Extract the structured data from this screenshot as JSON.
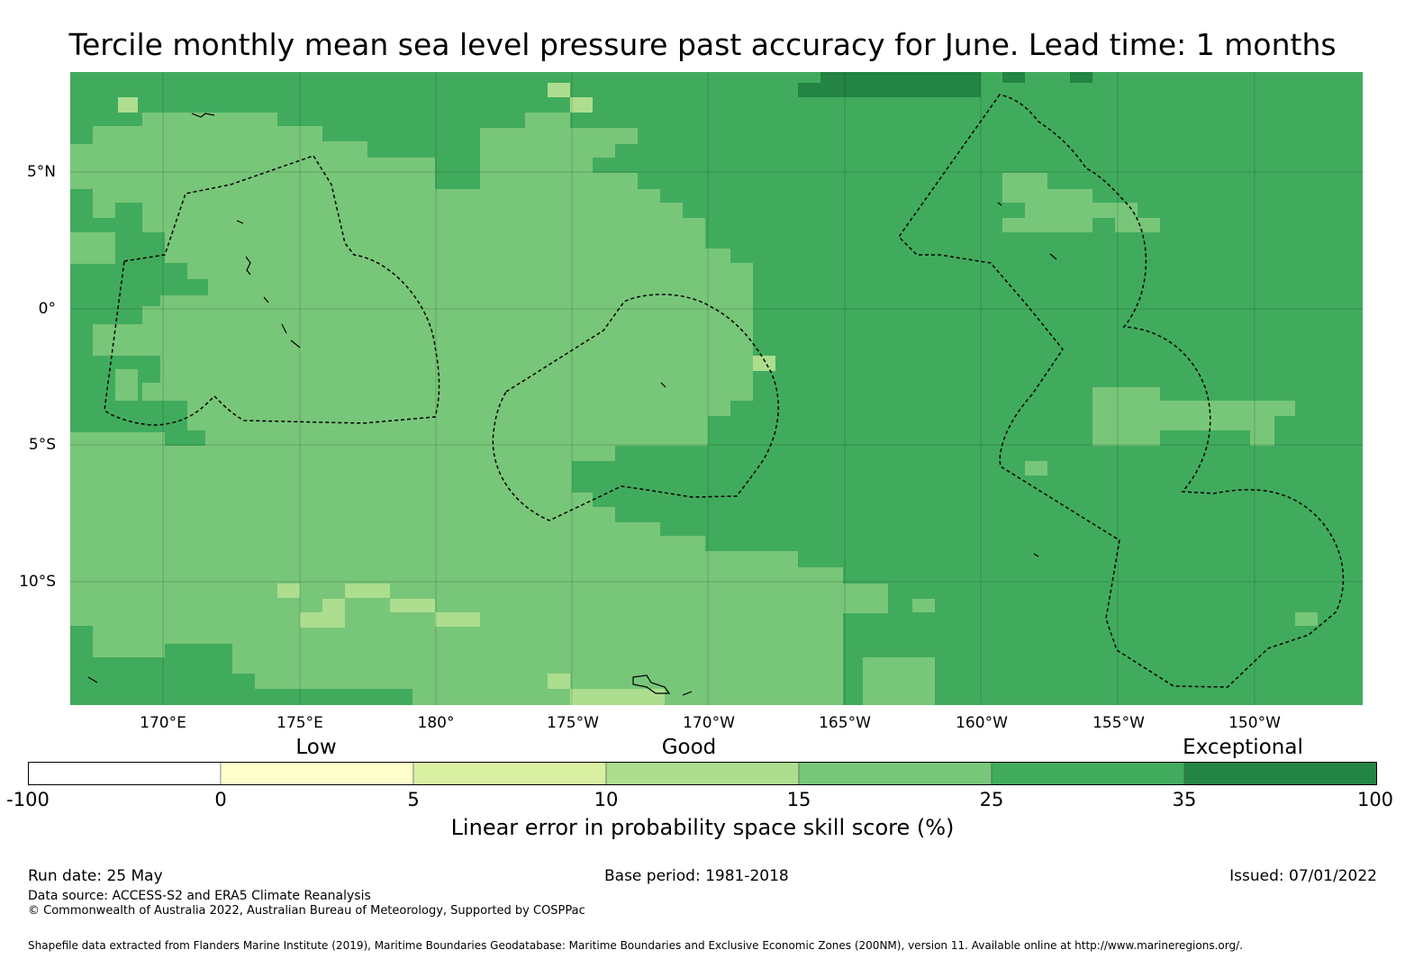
{
  "title": "Tercile monthly mean sea level pressure past accuracy for June. Lead time: 1 months",
  "map": {
    "lon_range": [
      166,
      203
    ],
    "lat_range": [
      -14.5,
      8.5
    ],
    "x_ticks": [
      {
        "lon": 170,
        "label": "170°E"
      },
      {
        "lon": 175,
        "label": "175°E"
      },
      {
        "lon": 180,
        "label": "180°"
      },
      {
        "lon": 185,
        "label": "175°W"
      },
      {
        "lon": 190,
        "label": "170°W"
      },
      {
        "lon": 195,
        "label": "165°W"
      },
      {
        "lon": 200,
        "label": "160°W"
      },
      {
        "lon": 205,
        "label": "155°W"
      },
      {
        "lon": 210,
        "label": "150°W"
      }
    ],
    "y_ticks": [
      {
        "lat": 5,
        "label": "5°N"
      },
      {
        "lat": 0,
        "label": "0°"
      },
      {
        "lat": -5,
        "label": "5°S"
      },
      {
        "lat": -10,
        "label": "10°S"
      }
    ],
    "gridlines": true,
    "dominant_category": "15 to 25 (west) and 25 to 35 (east)",
    "background_color": "#41ab5d"
  },
  "colorbar": {
    "categories": [
      {
        "label": "Low"
      },
      {
        "label": "Good"
      },
      {
        "label": "Exceptional"
      }
    ],
    "bins": [
      {
        "from": "-100",
        "to": "0",
        "color": "#ffffff"
      },
      {
        "from": "0",
        "to": "5",
        "color": "#ffffcc"
      },
      {
        "from": "5",
        "to": "10",
        "color": "#d9f0a3"
      },
      {
        "from": "10",
        "to": "15",
        "color": "#addd8e"
      },
      {
        "from": "15",
        "to": "25",
        "color": "#78c679"
      },
      {
        "from": "25",
        "to": "35",
        "color": "#41ab5d"
      },
      {
        "from": "35",
        "to": "100",
        "color": "#238443"
      }
    ],
    "tick_labels": [
      "-100",
      "0",
      "5",
      "10",
      "15",
      "25",
      "35",
      "100"
    ],
    "label": "Linear error in probability space skill score (%)"
  },
  "footer": {
    "run_date": "Run date: 25 May",
    "base_period": "Base period: 1981-2018",
    "issued": "Issued: 07/01/2022",
    "data_source": "Data source: ACCESS-S2 and ERA5 Climate Reanalysis",
    "copyright": "© Commonwealth of Australia 2022, Australian Bureau of Meteorology, Supported by COSPPac",
    "shapefile": "Shapefile data extracted from Flanders Marine Institute (2019), Maritime Boundaries Geodatabase: Maritime Boundaries and Exclusive Economic Zones (200NM), version 11. Available online at http://www.marineregions.org/."
  }
}
